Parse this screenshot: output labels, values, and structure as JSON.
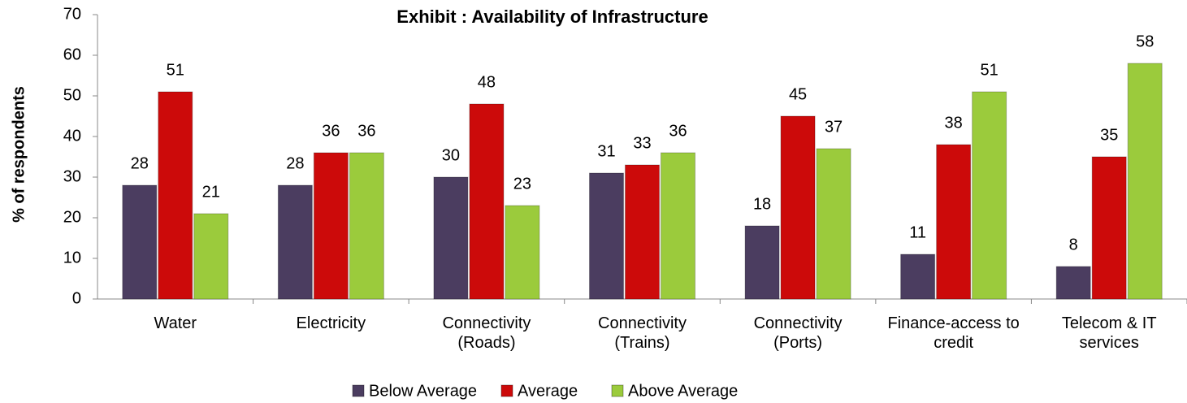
{
  "chart_data": {
    "type": "bar",
    "title": "Exhibit : Availability of  Infrastructure",
    "y_label": "% of respondents",
    "categories": [
      "Water",
      "Electricity",
      "Connectivity (Roads)",
      "Connectivity (Trains)",
      "Connectivity (Ports)",
      "Finance-access to credit",
      "Telecom & IT services"
    ],
    "series": [
      {
        "name": "Below Average",
        "color": "#4b3d60",
        "values": [
          28,
          28,
          30,
          31,
          18,
          11,
          8
        ]
      },
      {
        "name": "Average",
        "color": "#cc0a0a",
        "values": [
          51,
          36,
          48,
          33,
          45,
          38,
          35
        ]
      },
      {
        "name": "Above Average",
        "color": "#9bcb3c",
        "values": [
          21,
          36,
          23,
          36,
          37,
          51,
          58
        ]
      }
    ],
    "ylim": [
      0,
      70
    ],
    "yticks": [
      0,
      10,
      20,
      30,
      40,
      50,
      60,
      70
    ],
    "legend": "bottom"
  }
}
